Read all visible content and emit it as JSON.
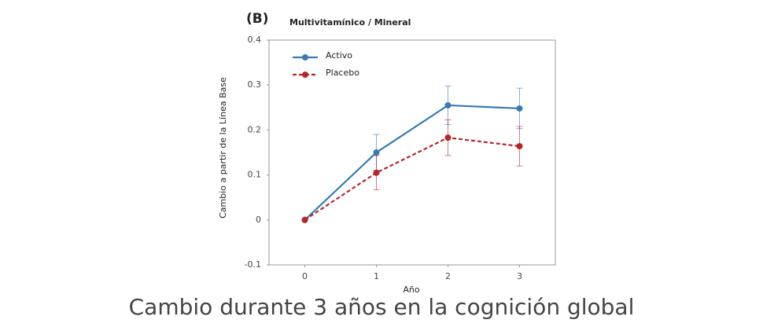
{
  "chart_data": {
    "type": "line",
    "panel_label": "(B)",
    "title": "Multivitamínico / Mineral",
    "y_label": "Cambio a partir de la Línea Base",
    "x_label": "Año",
    "caption": "Cambio durante 3 años en la cognición global",
    "x": [
      0,
      1,
      2,
      3
    ],
    "xlim": [
      -0.5,
      3.5
    ],
    "xticks": [
      0,
      1,
      2,
      3
    ],
    "ylim": [
      -0.1,
      0.4
    ],
    "yticks": [
      -0.1,
      0,
      0.1,
      0.2,
      0.3,
      0.4
    ],
    "legend": "upper-left",
    "series": [
      {
        "name": "Activo",
        "color": "#3a7ab0",
        "dash": false,
        "values": [
          0,
          0.15,
          0.255,
          0.248
        ],
        "errors": [
          0,
          0.04,
          0.043,
          0.045
        ]
      },
      {
        "name": "Placebo",
        "color": "#b3282d",
        "dash": true,
        "values": [
          0,
          0.105,
          0.183,
          0.164
        ],
        "errors": [
          0,
          0.038,
          0.04,
          0.044
        ]
      }
    ]
  }
}
